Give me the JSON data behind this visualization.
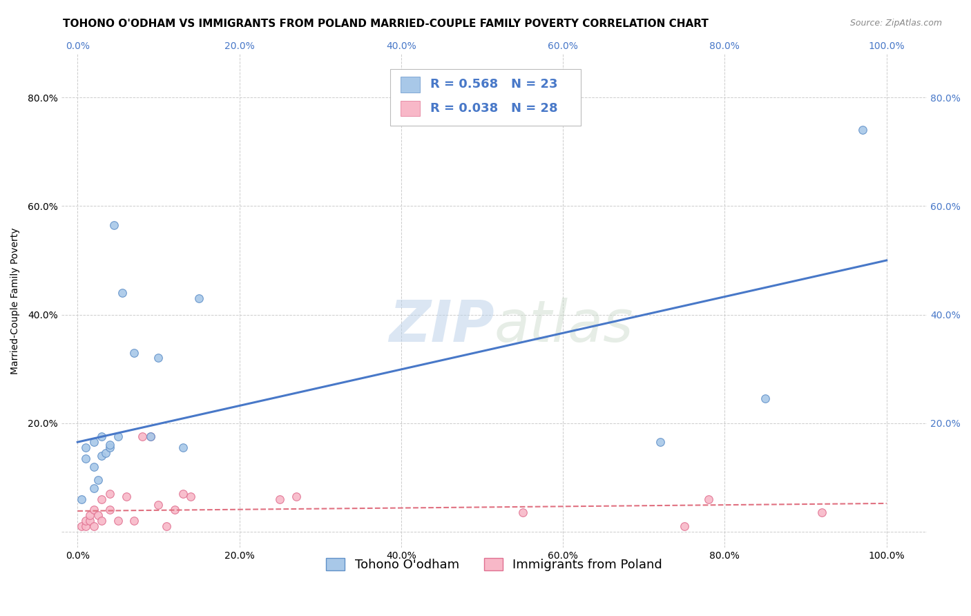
{
  "title": "TOHONO O'ODHAM VS IMMIGRANTS FROM POLAND MARRIED-COUPLE FAMILY POVERTY CORRELATION CHART",
  "source": "Source: ZipAtlas.com",
  "ylabel": "Married-Couple Family Poverty",
  "xlabel": "",
  "watermark_zip": "ZIP",
  "watermark_atlas": "atlas",
  "blue_label": "Tohono O'odham",
  "pink_label": "Immigrants from Poland",
  "blue_R": 0.568,
  "blue_N": 23,
  "pink_R": 0.038,
  "pink_N": 28,
  "blue_scatter_x": [
    0.005,
    0.01,
    0.01,
    0.02,
    0.02,
    0.02,
    0.025,
    0.03,
    0.03,
    0.035,
    0.04,
    0.04,
    0.045,
    0.05,
    0.055,
    0.07,
    0.09,
    0.1,
    0.13,
    0.15,
    0.72,
    0.85,
    0.97
  ],
  "blue_scatter_y": [
    0.06,
    0.135,
    0.155,
    0.08,
    0.12,
    0.165,
    0.095,
    0.14,
    0.175,
    0.145,
    0.155,
    0.16,
    0.565,
    0.175,
    0.44,
    0.33,
    0.175,
    0.32,
    0.155,
    0.43,
    0.165,
    0.245,
    0.74
  ],
  "pink_scatter_x": [
    0.005,
    0.01,
    0.01,
    0.015,
    0.015,
    0.02,
    0.02,
    0.025,
    0.03,
    0.03,
    0.04,
    0.04,
    0.05,
    0.06,
    0.07,
    0.08,
    0.09,
    0.1,
    0.11,
    0.12,
    0.13,
    0.14,
    0.25,
    0.27,
    0.55,
    0.75,
    0.78,
    0.92
  ],
  "pink_scatter_y": [
    0.01,
    0.01,
    0.02,
    0.02,
    0.03,
    0.01,
    0.04,
    0.03,
    0.02,
    0.06,
    0.04,
    0.07,
    0.02,
    0.065,
    0.02,
    0.175,
    0.175,
    0.05,
    0.01,
    0.04,
    0.07,
    0.065,
    0.06,
    0.065,
    0.035,
    0.01,
    0.06,
    0.035
  ],
  "blue_line_x": [
    0.0,
    1.0
  ],
  "blue_line_y_start": 0.165,
  "blue_line_y_end": 0.5,
  "pink_line_x": [
    0.0,
    1.0
  ],
  "pink_line_y_start": 0.038,
  "pink_line_y_end": 0.052,
  "xlim": [
    -0.02,
    1.05
  ],
  "ylim": [
    -0.03,
    0.88
  ],
  "xticks": [
    0.0,
    0.2,
    0.4,
    0.6,
    0.8,
    1.0
  ],
  "yticks": [
    0.0,
    0.2,
    0.4,
    0.6,
    0.8
  ],
  "xtick_labels": [
    "0.0%",
    "20.0%",
    "40.0%",
    "60.0%",
    "80.0%",
    "100.0%"
  ],
  "ytick_labels": [
    "",
    "20.0%",
    "40.0%",
    "60.0%",
    "80.0%"
  ],
  "right_ytick_labels": [
    "",
    "20.0%",
    "40.0%",
    "60.0%",
    "80.0%"
  ],
  "blue_color": "#a8c8e8",
  "blue_edge_color": "#6090c8",
  "blue_line_color": "#4878c8",
  "pink_color": "#f8b8c8",
  "pink_edge_color": "#e07090",
  "pink_line_color": "#e07080",
  "grid_color": "#cccccc",
  "background_color": "#ffffff",
  "title_fontsize": 11,
  "source_fontsize": 9,
  "axis_fontsize": 10,
  "tick_fontsize": 10,
  "legend_fontsize": 13,
  "scatter_size": 70
}
